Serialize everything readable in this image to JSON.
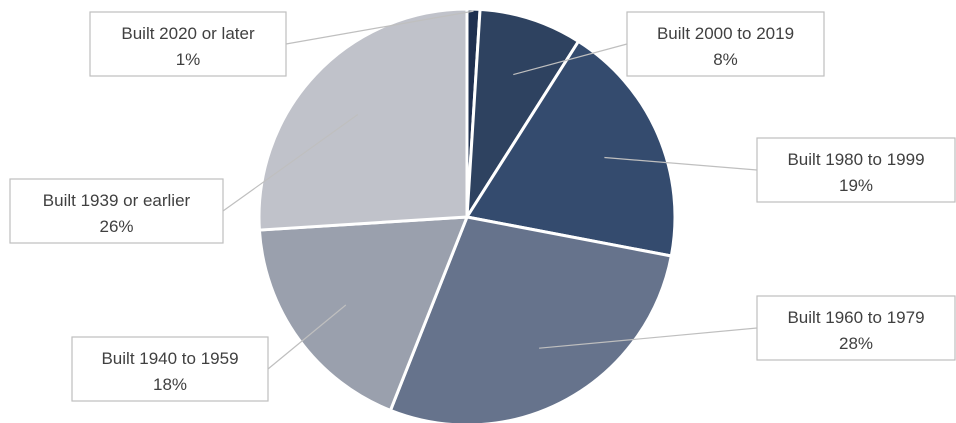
{
  "chart_data": {
    "type": "pie",
    "title": "",
    "slices": [
      {
        "label": "Built 2020 or later",
        "value": 1,
        "value_label": "1%",
        "color": "#1f3050"
      },
      {
        "label": "Built 2000 to 2019",
        "value": 8,
        "value_label": "8%",
        "color": "#2e4260"
      },
      {
        "label": "Built 1980 to 1999",
        "value": 19,
        "value_label": "19%",
        "color": "#344b6e"
      },
      {
        "label": "Built 1960 to 1979",
        "value": 28,
        "value_label": "28%",
        "color": "#66738c"
      },
      {
        "label": "Built 1940 to 1959",
        "value": 18,
        "value_label": "18%",
        "color": "#9aa0ad"
      },
      {
        "label": "Built 1939 or earlier",
        "value": 26,
        "value_label": "26%",
        "color": "#c0c2ca"
      }
    ],
    "start_angle_deg": 0,
    "direction": "clockwise",
    "legend": "none",
    "label_style": "callouts with leader lines"
  }
}
